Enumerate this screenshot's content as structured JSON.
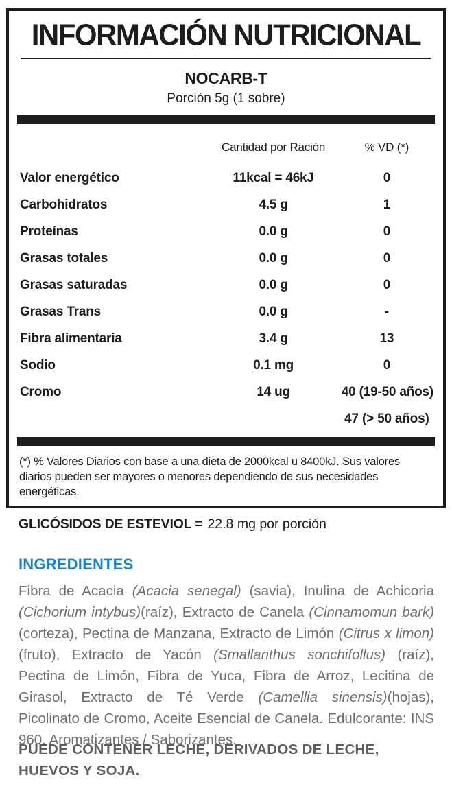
{
  "label": {
    "title": "INFORMACIÓN NUTRICIONAL",
    "product": "NOCARB-T",
    "serving": "Porción 5g (1 sobre)",
    "columns": {
      "amount": "Cantidad por Ración",
      "dv": "% VD (*)"
    },
    "rows": [
      {
        "name": "Valor energético",
        "amount": "11kcal = 46kJ",
        "dv": "0"
      },
      {
        "name": "Carbohidratos",
        "amount": "4.5 g",
        "dv": "1"
      },
      {
        "name": "Proteínas",
        "amount": "0.0 g",
        "dv": "0"
      },
      {
        "name": "Grasas totales",
        "amount": "0.0 g",
        "dv": "0"
      },
      {
        "name": "Grasas saturadas",
        "amount": "0.0 g",
        "dv": "0"
      },
      {
        "name": "Grasas Trans",
        "amount": "0.0 g",
        "dv": "-"
      },
      {
        "name": "Fibra alimentaria",
        "amount": "3.4 g",
        "dv": "13"
      },
      {
        "name": "Sodio",
        "amount": "0.1 mg",
        "dv": "0"
      },
      {
        "name": "Cromo",
        "amount": "14 ug",
        "dv": "40 (19-50 años)"
      },
      {
        "name": "",
        "amount": "",
        "dv": "47 (> 50 años)"
      }
    ],
    "footnote": "(*) % Valores Diarios con base a una dieta de 2000kcal u 8400kJ. Sus valores diarios pueden ser mayores o menores dependiendo de sus necesidades energéticas."
  },
  "steviol": {
    "label": "GLICÓSIDOS DE ESTEVIOL =",
    "value": "22.8 mg por porción"
  },
  "ingredients": {
    "heading": "INGREDIENTES",
    "segments": [
      {
        "text": "Fibra de Acacia ",
        "italic": false
      },
      {
        "text": "(Acacia senegal)",
        "italic": true
      },
      {
        "text": " (savia), Inulina de Achicoria ",
        "italic": false
      },
      {
        "text": "(Cichorium intybus)",
        "italic": true
      },
      {
        "text": "(raíz), Extracto de Canela ",
        "italic": false
      },
      {
        "text": "(Cinnamomun bark)",
        "italic": true
      },
      {
        "text": " (corteza), Pectina de Manzana, Extracto de Limón ",
        "italic": false
      },
      {
        "text": "(Citrus x limon)",
        "italic": true
      },
      {
        "text": " (fruto), Extracto de Yacón ",
        "italic": false
      },
      {
        "text": "(Smallanthus sonchifollus)",
        "italic": true
      },
      {
        "text": " (raíz), Pectina de Limón, Fibra de Yuca, Fibra de Arroz, Lecitina de Girasol, Extracto de Té Verde ",
        "italic": false
      },
      {
        "text": "(Camellia sinensis)",
        "italic": true
      },
      {
        "text": "(hojas), Picolinato de Cromo, Aceite Esencial de Canela. Edulcorante: INS 960, Aromatizantes / Saborizantes.",
        "italic": false
      }
    ]
  },
  "allergen": "PUEDE CONTENER LECHE, DERIVADOS DE LECHE, HUEVOS Y SOJA.",
  "colors": {
    "accent_blue": "#1186d8",
    "text_black": "#1d1d1b",
    "text_gray": "#6e6f72",
    "text_gray_dark": "#5d5e62"
  }
}
